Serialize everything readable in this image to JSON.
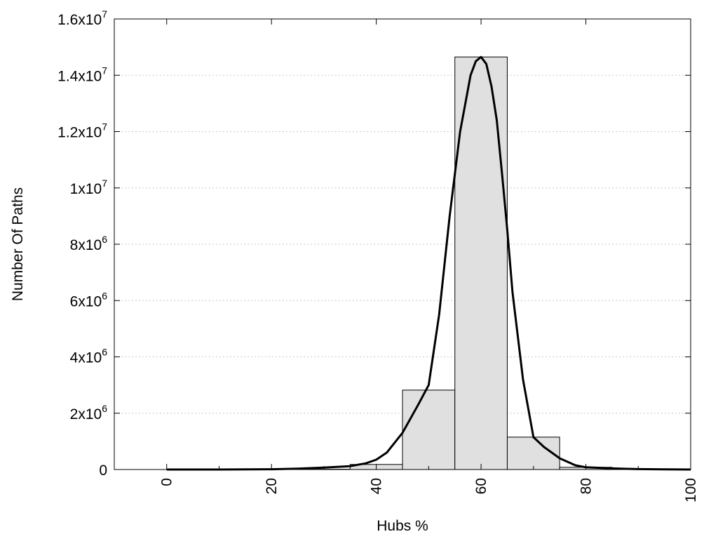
{
  "chart_data": {
    "type": "bar",
    "xlabel": "Hubs %",
    "ylabel": "Number Of Paths",
    "xlim": [
      -10,
      100
    ],
    "ylim": [
      0,
      16000000
    ],
    "grid": "horizontal dotted",
    "colors": {
      "bar_fill": "#e0e0e0",
      "bar_edge": "#000000",
      "curve": "#000000"
    },
    "x_ticks": [
      {
        "value": 0,
        "label": "0"
      },
      {
        "value": 20,
        "label": "20"
      },
      {
        "value": 40,
        "label": "40"
      },
      {
        "value": 60,
        "label": "60"
      },
      {
        "value": 80,
        "label": "80"
      },
      {
        "value": 100,
        "label": "100"
      }
    ],
    "y_ticks": [
      {
        "value": 0,
        "mantissa": "0",
        "exponent": ""
      },
      {
        "value": 2000000,
        "mantissa": "2x10",
        "exponent": "6"
      },
      {
        "value": 4000000,
        "mantissa": "4x10",
        "exponent": "6"
      },
      {
        "value": 6000000,
        "mantissa": "6x10",
        "exponent": "6"
      },
      {
        "value": 8000000,
        "mantissa": "8x10",
        "exponent": "6"
      },
      {
        "value": 10000000,
        "mantissa": "1x10",
        "exponent": "7"
      },
      {
        "value": 12000000,
        "mantissa": "1.2x10",
        "exponent": "7"
      },
      {
        "value": 14000000,
        "mantissa": "1.4x10",
        "exponent": "7"
      },
      {
        "value": 16000000,
        "mantissa": "1.6x10",
        "exponent": "7"
      }
    ],
    "bars": [
      {
        "x0": -5,
        "x1": 5,
        "value": 0
      },
      {
        "x0": 5,
        "x1": 15,
        "value": 0
      },
      {
        "x0": 15,
        "x1": 25,
        "value": 0
      },
      {
        "x0": 25,
        "x1": 35,
        "value": 10000
      },
      {
        "x0": 35,
        "x1": 45,
        "value": 180000
      },
      {
        "x0": 45,
        "x1": 55,
        "value": 2820000
      },
      {
        "x0": 55,
        "x1": 65,
        "value": 14650000
      },
      {
        "x0": 65,
        "x1": 75,
        "value": 1150000
      },
      {
        "x0": 75,
        "x1": 85,
        "value": 80000
      },
      {
        "x0": 85,
        "x1": 95,
        "value": 10000
      }
    ],
    "curve": {
      "x": [
        0,
        10,
        20,
        25,
        30,
        35,
        38,
        40,
        42,
        45,
        48,
        50,
        52,
        54,
        56,
        57,
        58,
        59,
        60,
        61,
        62,
        63,
        64,
        65,
        66,
        68,
        70,
        72,
        75,
        78,
        80,
        85,
        90,
        95,
        100
      ],
      "y": [
        0,
        0,
        10000,
        30000,
        70000,
        120000,
        220000,
        350000,
        600000,
        1300000,
        2300000,
        3000000,
        5500000,
        9000000,
        12000000,
        13000000,
        14000000,
        14500000,
        14650000,
        14400000,
        13600000,
        12400000,
        10500000,
        8500000,
        6300000,
        3200000,
        1150000,
        800000,
        400000,
        150000,
        80000,
        40000,
        15000,
        5000,
        0
      ]
    }
  }
}
